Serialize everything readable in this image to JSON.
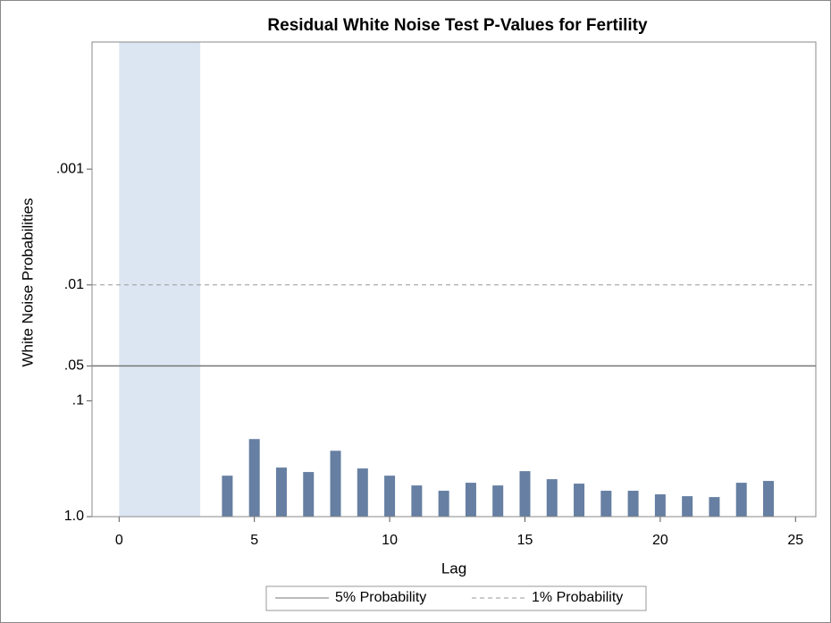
{
  "chart_data": {
    "type": "bar",
    "title": "Residual White Noise Test P-Values for Fertility",
    "x_label": "Lag",
    "y_label": "White Noise Probabilities",
    "x": [
      4,
      5,
      6,
      7,
      8,
      9,
      10,
      11,
      12,
      13,
      14,
      15,
      16,
      17,
      18,
      19,
      20,
      21,
      22,
      23,
      24
    ],
    "values": [
      0.443,
      0.214,
      0.377,
      0.412,
      0.27,
      0.384,
      0.443,
      0.538,
      0.598,
      0.51,
      0.538,
      0.405,
      0.475,
      0.519,
      0.598,
      0.598,
      0.642,
      0.666,
      0.678,
      0.51,
      0.492
    ],
    "color": "#667fa2",
    "xlim": [
      -1,
      25.75
    ],
    "xticks": [
      0,
      5,
      10,
      15,
      20,
      25
    ],
    "ylim": [
      1,
      8e-05
    ],
    "log_scale": true,
    "yticks": [
      {
        "value": 1,
        "label": "1.0"
      },
      {
        "value": 0.1,
        "label": ".1"
      },
      {
        "value": 0.05,
        "label": ".05"
      },
      {
        "value": 0.01,
        "label": ".01"
      },
      {
        "value": 0.001,
        "label": ".001"
      }
    ],
    "shaded_region": [
      0,
      3
    ],
    "shade_color": "#dce6f2",
    "reference_lines": [
      {
        "name": "5% Probability",
        "value": 0.05,
        "style": "solid"
      },
      {
        "name": "1% Probability",
        "value": 0.01,
        "style": "dashed"
      }
    ]
  }
}
